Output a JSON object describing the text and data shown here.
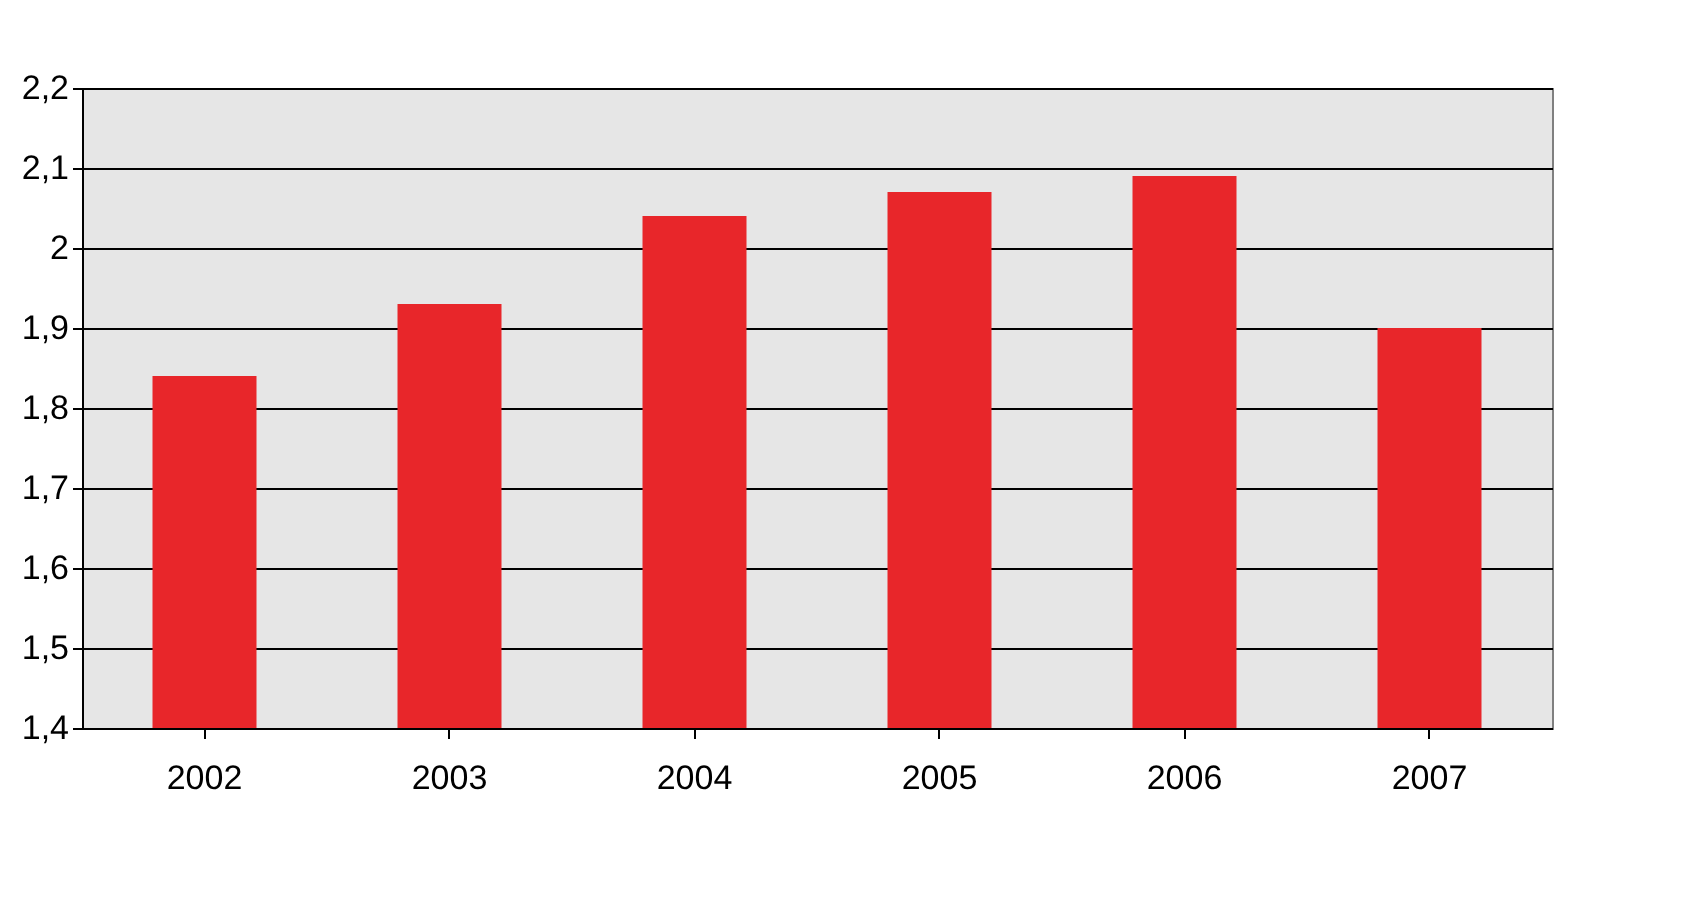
{
  "chart_data": {
    "type": "bar",
    "categories": [
      "2002",
      "2003",
      "2004",
      "2005",
      "2006",
      "2007"
    ],
    "values": [
      1.84,
      1.93,
      2.04,
      2.07,
      2.09,
      1.9
    ],
    "color": "#e8262a",
    "ylim": [
      1.4,
      2.2
    ],
    "yticks": [
      {
        "value": 1.4,
        "label": "1,4"
      },
      {
        "value": 1.5,
        "label": "1,5"
      },
      {
        "value": 1.6,
        "label": "1,6"
      },
      {
        "value": 1.7,
        "label": "1,7"
      },
      {
        "value": 1.8,
        "label": "1,8"
      },
      {
        "value": 1.9,
        "label": "1,9"
      },
      2,
      {
        "value": 2.1,
        "label": "2,1"
      },
      {
        "value": 2.2,
        "label": "2,2"
      }
    ],
    "grid": "y"
  }
}
